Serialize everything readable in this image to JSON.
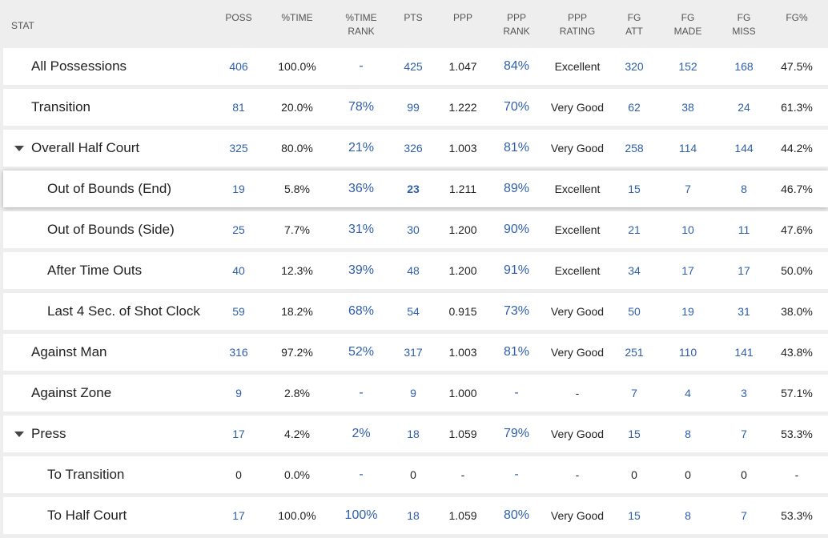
{
  "table": {
    "header": [
      [
        "STAT"
      ],
      [
        "POSS"
      ],
      [
        "%TIME"
      ],
      [
        "%TIME",
        "RANK"
      ],
      [
        "PTS"
      ],
      [
        "PPP"
      ],
      [
        "PPP",
        "RANK"
      ],
      [
        "PPP",
        "RATING"
      ],
      [
        "FG",
        "ATT"
      ],
      [
        "FG",
        "MADE"
      ],
      [
        "FG",
        "MISS"
      ],
      [
        "FG%"
      ]
    ],
    "rows": [
      {
        "label": "All Possessions",
        "level": 0,
        "cells": [
          "406",
          "100.0%",
          "-",
          "425",
          "1.047",
          "84%",
          "Excellent",
          "320",
          "152",
          "168",
          "47.5%"
        ]
      },
      {
        "label": "Transition",
        "level": 0,
        "cells": [
          "81",
          "20.0%",
          "78%",
          "99",
          "1.222",
          "70%",
          "Very Good",
          "62",
          "38",
          "24",
          "61.3%"
        ]
      },
      {
        "label": "Overall Half Court",
        "level": 0,
        "expanded": true,
        "cells": [
          "325",
          "80.0%",
          "21%",
          "326",
          "1.003",
          "81%",
          "Very Good",
          "258",
          "114",
          "144",
          "44.2%"
        ]
      },
      {
        "label": "Out of Bounds (End)",
        "level": 1,
        "highlighted": true,
        "cells": [
          "19",
          "5.8%",
          "36%",
          "23",
          "1.211",
          "89%",
          "Excellent",
          "15",
          "7",
          "8",
          "46.7%"
        ]
      },
      {
        "label": "Out of Bounds (Side)",
        "level": 1,
        "cells": [
          "25",
          "7.7%",
          "31%",
          "30",
          "1.200",
          "90%",
          "Excellent",
          "21",
          "10",
          "11",
          "47.6%"
        ]
      },
      {
        "label": "After Time Outs",
        "level": 1,
        "cells": [
          "40",
          "12.3%",
          "39%",
          "48",
          "1.200",
          "91%",
          "Excellent",
          "34",
          "17",
          "17",
          "50.0%"
        ]
      },
      {
        "label": "Last 4 Sec. of Shot Clock",
        "level": 1,
        "cells": [
          "59",
          "18.2%",
          "68%",
          "54",
          "0.915",
          "73%",
          "Very Good",
          "50",
          "19",
          "31",
          "38.0%"
        ]
      },
      {
        "label": "Against Man",
        "level": 0,
        "cells": [
          "316",
          "97.2%",
          "52%",
          "317",
          "1.003",
          "81%",
          "Very Good",
          "251",
          "110",
          "141",
          "43.8%"
        ]
      },
      {
        "label": "Against Zone",
        "level": 0,
        "cells": [
          "9",
          "2.8%",
          "-",
          "9",
          "1.000",
          "-",
          "-",
          "7",
          "4",
          "3",
          "57.1%"
        ]
      },
      {
        "label": "Press",
        "level": 0,
        "expanded": true,
        "cells": [
          "17",
          "4.2%",
          "2%",
          "18",
          "1.059",
          "79%",
          "Very Good",
          "15",
          "8",
          "7",
          "53.3%"
        ]
      },
      {
        "label": "To Transition",
        "level": 1,
        "cells": [
          "0",
          "0.0%",
          "-",
          "0",
          "-",
          "-",
          "-",
          "0",
          "0",
          "0",
          "-"
        ]
      },
      {
        "label": "To Half Court",
        "level": 1,
        "cells": [
          "17",
          "100.0%",
          "100%",
          "18",
          "1.059",
          "80%",
          "Very Good",
          "15",
          "8",
          "7",
          "53.3%"
        ]
      }
    ]
  }
}
